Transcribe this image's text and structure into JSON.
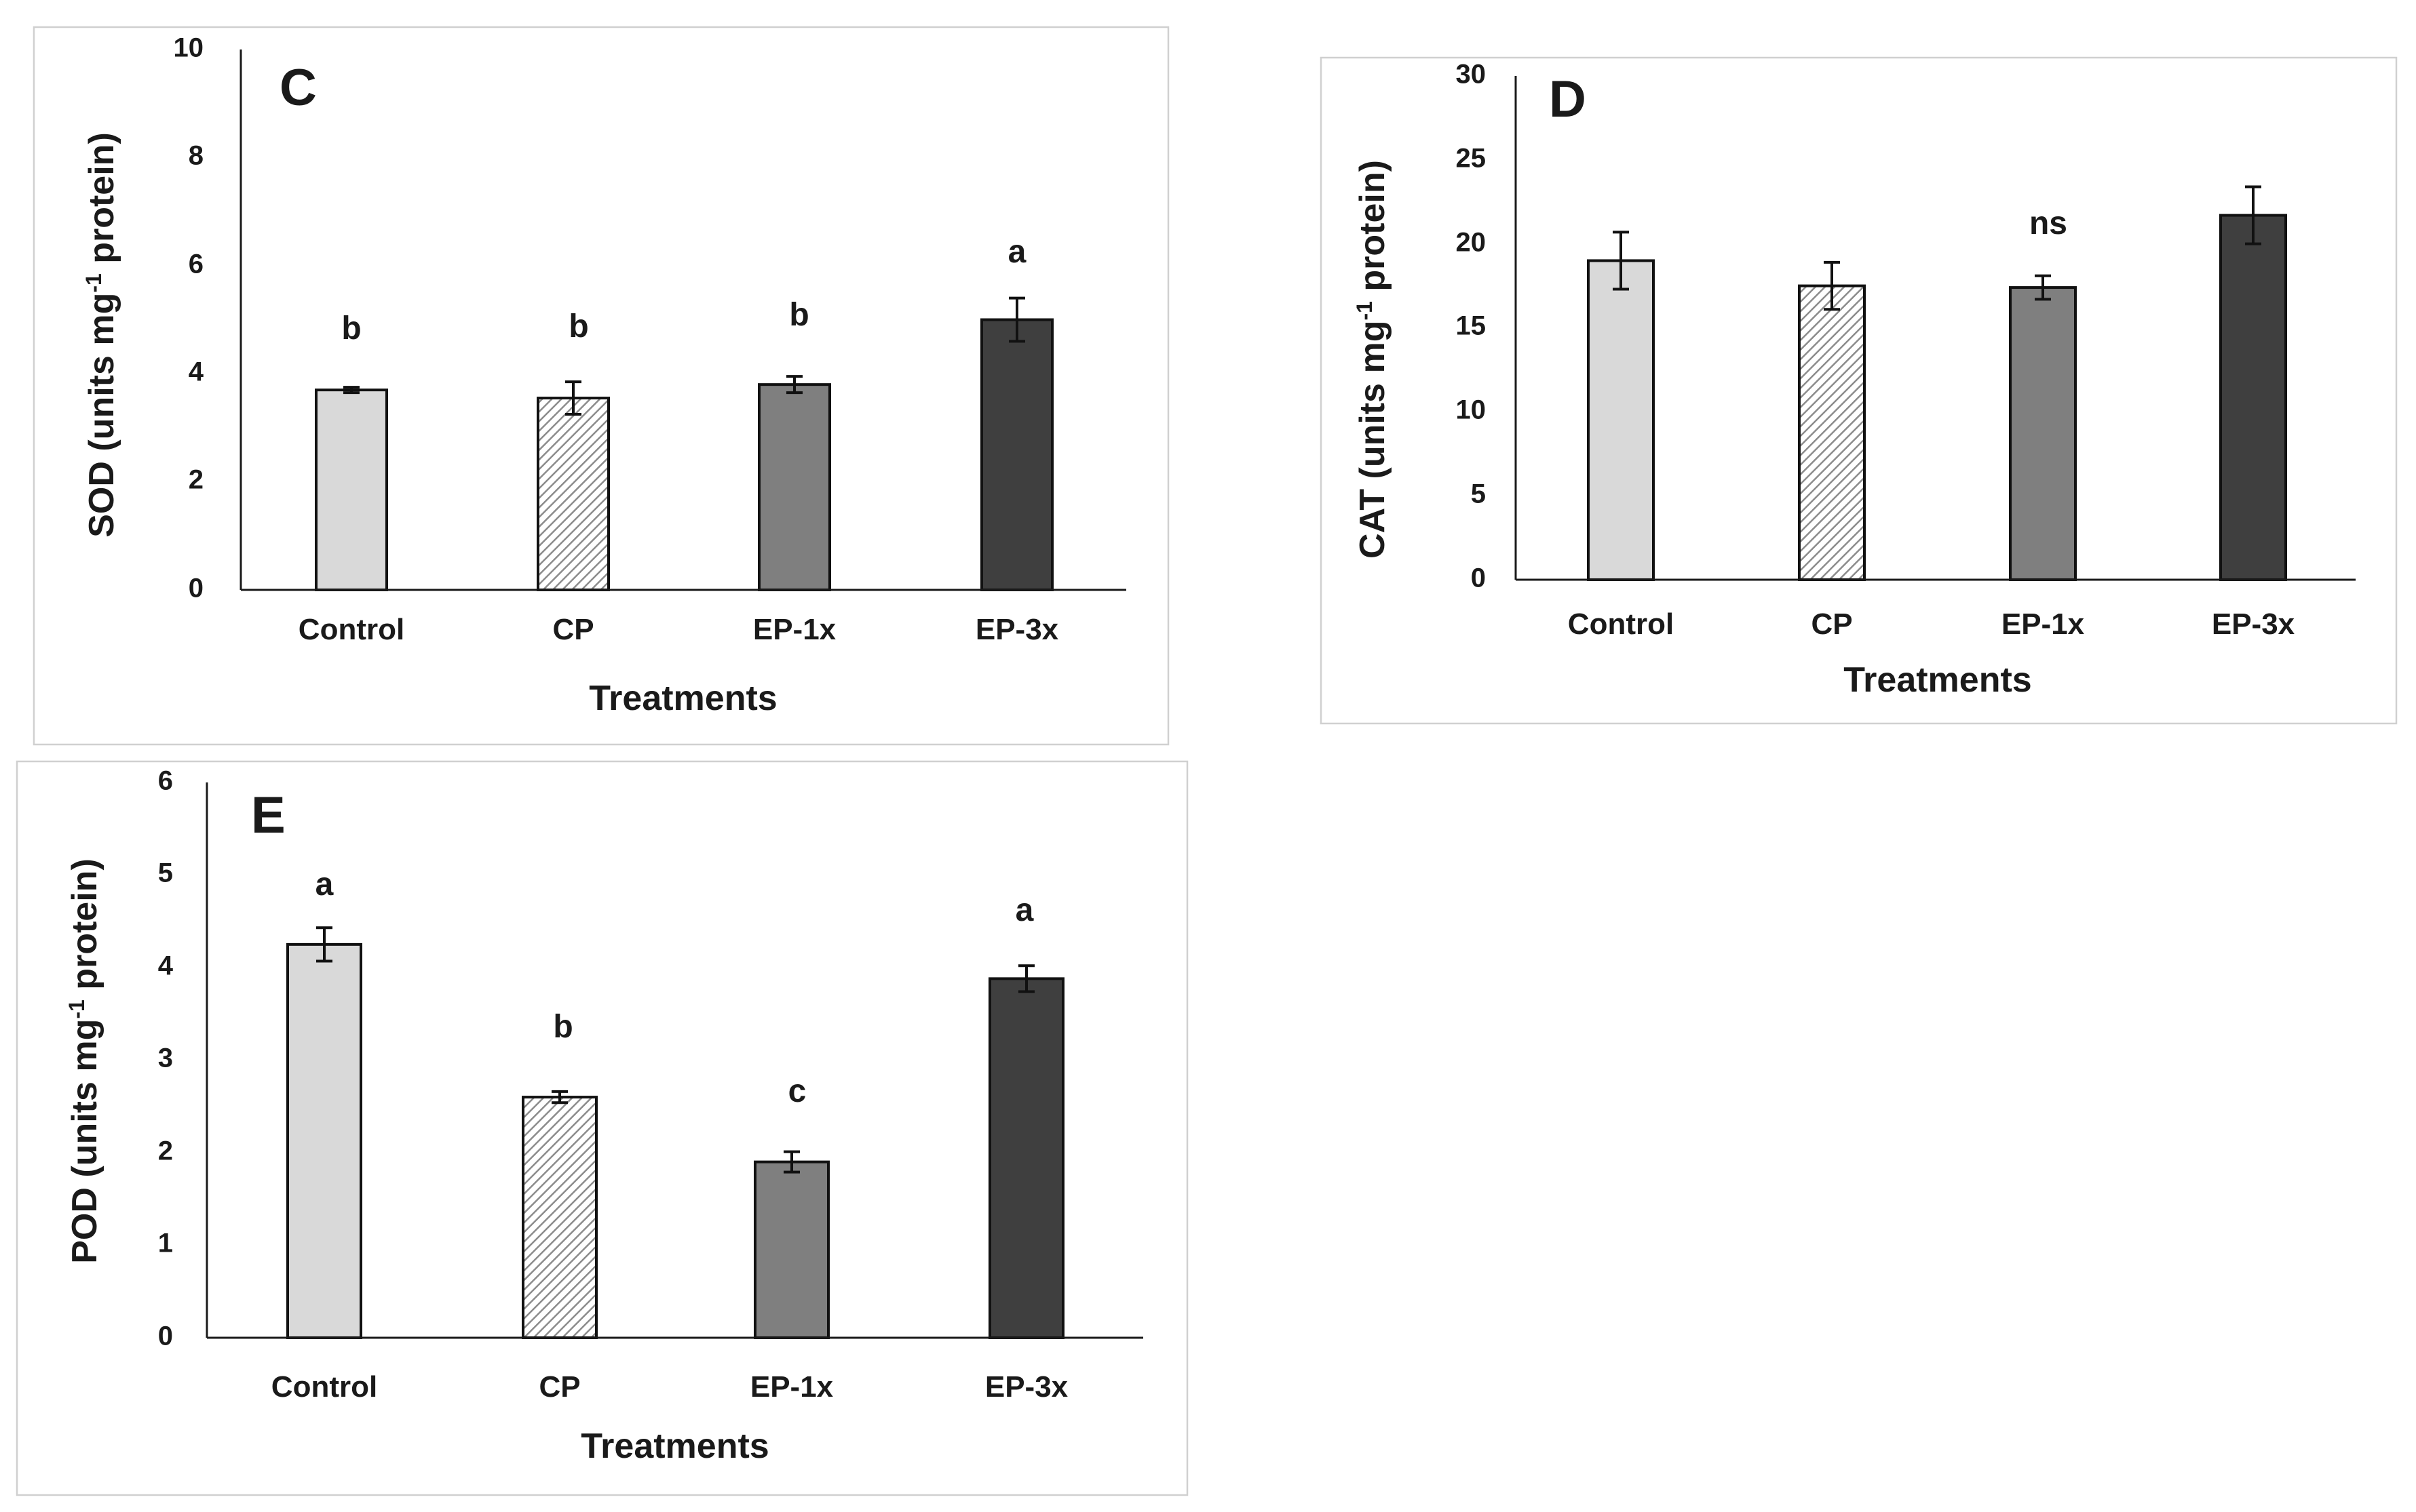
{
  "colors": {
    "Control": "#d9d9d9",
    "CP": "hatch",
    "EP-1x": "#7f7f7f",
    "EP-3x": "#3f3f3f"
  },
  "chart_data": [
    {
      "id": "C",
      "type": "bar",
      "panel_label": "C",
      "categories": [
        "Control",
        "CP",
        "EP-1x",
        "EP-3x"
      ],
      "values": [
        3.7,
        3.55,
        3.8,
        5.0
      ],
      "errors": [
        0.05,
        0.3,
        0.15,
        0.4
      ],
      "significance": [
        "b",
        "b",
        "b",
        "a"
      ],
      "ylim": [
        0,
        10
      ],
      "yticks": [
        0,
        2,
        4,
        6,
        8,
        10
      ],
      "ylabel_main": "SOD (units mg",
      "ylabel_sup": "-1",
      "ylabel_tail": " protein)",
      "xlabel": "Treatments"
    },
    {
      "id": "D",
      "type": "bar",
      "panel_label": "D",
      "categories": [
        "Control",
        "CP",
        "EP-1x",
        "EP-3x"
      ],
      "values": [
        19.0,
        17.5,
        17.4,
        21.7
      ],
      "errors": [
        1.7,
        1.4,
        0.7,
        1.7
      ],
      "significance": [
        "",
        "",
        "ns",
        ""
      ],
      "ylim": [
        0,
        30
      ],
      "yticks": [
        0,
        5,
        10,
        15,
        20,
        25,
        30
      ],
      "ylabel_main": "CAT (units mg",
      "ylabel_sup": "-1",
      "ylabel_tail": " protein)",
      "xlabel": "Treatments"
    },
    {
      "id": "E",
      "type": "bar",
      "panel_label": "E",
      "categories": [
        "Control",
        "CP",
        "EP-1x",
        "EP-3x"
      ],
      "values": [
        4.25,
        2.6,
        1.9,
        3.88
      ],
      "errors": [
        0.18,
        0.06,
        0.11,
        0.14
      ],
      "significance": [
        "a",
        "b",
        "c",
        "a"
      ],
      "ylim": [
        0,
        6
      ],
      "yticks": [
        0,
        1,
        2,
        3,
        4,
        5,
        6
      ],
      "ylabel_main": "POD (units mg",
      "ylabel_sup": "-1",
      "ylabel_tail": " protein)",
      "xlabel": "Treatments"
    }
  ]
}
